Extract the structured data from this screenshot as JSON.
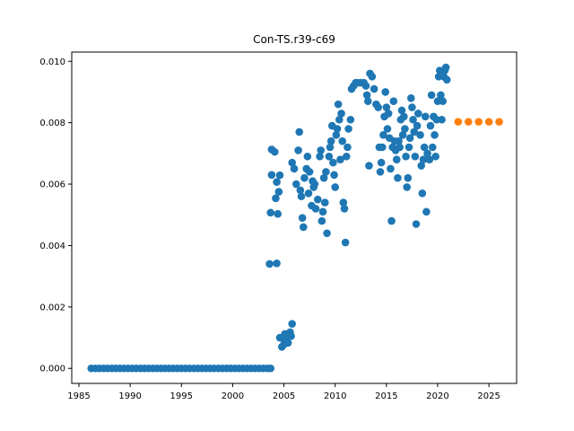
{
  "chart_data": {
    "type": "scatter",
    "title": "Con-TS.r39-c69",
    "xlabel": "",
    "ylabel": "",
    "xlim": [
      1984.3,
      2027.7
    ],
    "ylim": [
      -0.00049,
      0.0103
    ],
    "xticks": [
      1985,
      1990,
      1995,
      2000,
      2005,
      2010,
      2015,
      2020,
      2025
    ],
    "yticks": [
      0.0,
      0.002,
      0.004,
      0.006,
      0.008,
      0.01
    ],
    "ytick_labels": [
      "0.000",
      "0.002",
      "0.004",
      "0.006",
      "0.008",
      "0.010"
    ],
    "grid": false,
    "series": [
      {
        "color": "#1f77b4",
        "points": [
          [
            1986.2,
            0
          ],
          [
            1986.6,
            0
          ],
          [
            1987.0,
            0
          ],
          [
            1987.4,
            0
          ],
          [
            1987.8,
            0
          ],
          [
            1988.2,
            0
          ],
          [
            1988.6,
            0
          ],
          [
            1989.0,
            0
          ],
          [
            1989.4,
            0
          ],
          [
            1989.8,
            0
          ],
          [
            1990.2,
            0
          ],
          [
            1990.6,
            0
          ],
          [
            1991.0,
            0
          ],
          [
            1991.4,
            0
          ],
          [
            1991.8,
            0
          ],
          [
            1992.2,
            0
          ],
          [
            1992.6,
            0
          ],
          [
            1993.0,
            0
          ],
          [
            1993.4,
            0
          ],
          [
            1993.8,
            0
          ],
          [
            1994.2,
            0
          ],
          [
            1994.6,
            0
          ],
          [
            1995.0,
            0
          ],
          [
            1995.4,
            0
          ],
          [
            1995.8,
            0
          ],
          [
            1996.2,
            0
          ],
          [
            1996.6,
            0
          ],
          [
            1997.0,
            0
          ],
          [
            1997.4,
            0
          ],
          [
            1997.8,
            0
          ],
          [
            1998.2,
            0
          ],
          [
            1998.6,
            0
          ],
          [
            1999.0,
            0
          ],
          [
            1999.4,
            0
          ],
          [
            1999.8,
            0
          ],
          [
            2000.2,
            0
          ],
          [
            2000.6,
            0
          ],
          [
            2001.0,
            0
          ],
          [
            2001.4,
            0
          ],
          [
            2001.8,
            0
          ],
          [
            2002.2,
            0
          ],
          [
            2002.6,
            0
          ],
          [
            2003.0,
            0
          ],
          [
            2003.4,
            0
          ],
          [
            2003.7,
            0
          ],
          [
            2003.6,
            0.0034
          ],
          [
            2004.3,
            0.00342
          ],
          [
            2003.7,
            0.00507
          ],
          [
            2004.4,
            0.00503
          ],
          [
            2003.8,
            0.0063
          ],
          [
            2004.2,
            0.00554
          ],
          [
            2004.5,
            0.00575
          ],
          [
            2004.6,
            0.00629
          ],
          [
            2004.3,
            0.00607
          ],
          [
            2003.8,
            0.00713
          ],
          [
            2004.1,
            0.00705
          ],
          [
            2004.6,
            0.001
          ],
          [
            2004.8,
            0.0007
          ],
          [
            2005.0,
            0.00078
          ],
          [
            2005.2,
            0.0009
          ],
          [
            2005.4,
            0.00083
          ],
          [
            2005.1,
            0.00112
          ],
          [
            2005.6,
            0.00118
          ],
          [
            2005.7,
            0.00105
          ],
          [
            2005.8,
            0.00145
          ],
          [
            2004.9,
            0.00098
          ],
          [
            2005.8,
            0.0067
          ],
          [
            2006.0,
            0.0065
          ],
          [
            2006.2,
            0.006
          ],
          [
            2006.4,
            0.0071
          ],
          [
            2006.5,
            0.0077
          ],
          [
            2006.7,
            0.0056
          ],
          [
            2006.6,
            0.0058
          ],
          [
            2006.9,
            0.0046
          ],
          [
            2006.8,
            0.0049
          ],
          [
            2007.0,
            0.0062
          ],
          [
            2007.2,
            0.0065
          ],
          [
            2007.3,
            0.0069
          ],
          [
            2007.4,
            0.0057
          ],
          [
            2007.5,
            0.0064
          ],
          [
            2007.7,
            0.0053
          ],
          [
            2007.8,
            0.0061
          ],
          [
            2007.9,
            0.0059
          ],
          [
            2008.0,
            0.006
          ],
          [
            2008.1,
            0.0052
          ],
          [
            2008.3,
            0.0055
          ],
          [
            2008.5,
            0.0069
          ],
          [
            2008.6,
            0.0071
          ],
          [
            2008.7,
            0.0048
          ],
          [
            2008.8,
            0.0051
          ],
          [
            2008.9,
            0.0062
          ],
          [
            2009.0,
            0.0054
          ],
          [
            2009.1,
            0.0064
          ],
          [
            2009.2,
            0.0044
          ],
          [
            2009.4,
            0.0069
          ],
          [
            2009.5,
            0.0072
          ],
          [
            2009.6,
            0.0074
          ],
          [
            2009.7,
            0.0079
          ],
          [
            2009.8,
            0.0067
          ],
          [
            2009.9,
            0.0063
          ],
          [
            2010.0,
            0.0059
          ],
          [
            2010.1,
            0.0076
          ],
          [
            2010.2,
            0.0078
          ],
          [
            2010.3,
            0.0086
          ],
          [
            2010.4,
            0.0081
          ],
          [
            2010.5,
            0.0068
          ],
          [
            2010.6,
            0.0083
          ],
          [
            2010.7,
            0.0074
          ],
          [
            2010.8,
            0.0054
          ],
          [
            2010.9,
            0.0052
          ],
          [
            2011.0,
            0.0041
          ],
          [
            2011.1,
            0.0069
          ],
          [
            2011.2,
            0.0072
          ],
          [
            2011.3,
            0.0078
          ],
          [
            2011.5,
            0.0081
          ],
          [
            2011.6,
            0.0091
          ],
          [
            2011.8,
            0.0092
          ],
          [
            2012.0,
            0.0093
          ],
          [
            2012.2,
            0.0093
          ],
          [
            2012.5,
            0.0093
          ],
          [
            2012.8,
            0.0093
          ],
          [
            2013.0,
            0.0092
          ],
          [
            2013.1,
            0.0089
          ],
          [
            2013.2,
            0.0087
          ],
          [
            2013.3,
            0.0066
          ],
          [
            2013.4,
            0.0096
          ],
          [
            2013.6,
            0.0095
          ],
          [
            2013.8,
            0.0091
          ],
          [
            2014.0,
            0.0086
          ],
          [
            2014.2,
            0.0085
          ],
          [
            2014.3,
            0.0072
          ],
          [
            2014.4,
            0.0064
          ],
          [
            2014.5,
            0.0067
          ],
          [
            2014.6,
            0.0072
          ],
          [
            2014.7,
            0.0076
          ],
          [
            2014.8,
            0.0082
          ],
          [
            2014.9,
            0.009
          ],
          [
            2015.0,
            0.0085
          ],
          [
            2015.1,
            0.0078
          ],
          [
            2015.2,
            0.0083
          ],
          [
            2015.3,
            0.0075
          ],
          [
            2015.4,
            0.0065
          ],
          [
            2015.5,
            0.0048
          ],
          [
            2015.6,
            0.0072
          ],
          [
            2015.7,
            0.0087
          ],
          [
            2015.8,
            0.0074
          ],
          [
            2015.9,
            0.0071
          ],
          [
            2016.0,
            0.0068
          ],
          [
            2016.1,
            0.0062
          ],
          [
            2016.2,
            0.0074
          ],
          [
            2016.3,
            0.0072
          ],
          [
            2016.4,
            0.0081
          ],
          [
            2016.5,
            0.0084
          ],
          [
            2016.6,
            0.0076
          ],
          [
            2016.7,
            0.0082
          ],
          [
            2016.8,
            0.0078
          ],
          [
            2016.9,
            0.0069
          ],
          [
            2017.0,
            0.0059
          ],
          [
            2017.1,
            0.0062
          ],
          [
            2017.2,
            0.0072
          ],
          [
            2017.3,
            0.0075
          ],
          [
            2017.4,
            0.0088
          ],
          [
            2017.5,
            0.0085
          ],
          [
            2017.6,
            0.0081
          ],
          [
            2017.7,
            0.0077
          ],
          [
            2017.8,
            0.0069
          ],
          [
            2017.9,
            0.0047
          ],
          [
            2018.0,
            0.0079
          ],
          [
            2018.1,
            0.0083
          ],
          [
            2018.3,
            0.0076
          ],
          [
            2018.4,
            0.0066
          ],
          [
            2018.5,
            0.0057
          ],
          [
            2018.6,
            0.0068
          ],
          [
            2018.7,
            0.0072
          ],
          [
            2018.8,
            0.0082
          ],
          [
            2018.9,
            0.0051
          ],
          [
            2019.0,
            0.007
          ],
          [
            2019.2,
            0.0068
          ],
          [
            2019.4,
            0.0089
          ],
          [
            2019.6,
            0.0082
          ],
          [
            2019.7,
            0.0076
          ],
          [
            2019.8,
            0.0069
          ],
          [
            2019.9,
            0.0081
          ],
          [
            2020.0,
            0.0087
          ],
          [
            2020.1,
            0.0095
          ],
          [
            2020.2,
            0.0097
          ],
          [
            2020.3,
            0.0089
          ],
          [
            2020.4,
            0.0081
          ],
          [
            2020.5,
            0.0087
          ],
          [
            2020.6,
            0.0095
          ],
          [
            2020.7,
            0.0097
          ],
          [
            2020.8,
            0.0098
          ],
          [
            2019.3,
            0.0079
          ],
          [
            2019.5,
            0.0072
          ],
          [
            2020.9,
            0.0094
          ]
        ]
      },
      {
        "color": "#ff7f0e",
        "points": [
          [
            2022,
            0.00803
          ],
          [
            2023,
            0.00803
          ],
          [
            2024,
            0.00803
          ],
          [
            2025,
            0.00803
          ],
          [
            2026,
            0.00803
          ]
        ]
      }
    ]
  }
}
